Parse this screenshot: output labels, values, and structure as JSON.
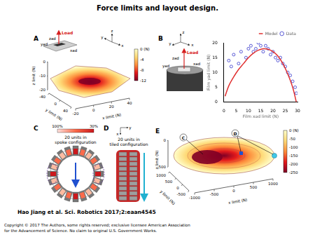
{
  "title": "Force limits and layout design.",
  "panels": [
    {
      "label": "A",
      "annotations": [
        "Load",
        "zad",
        "yad",
        "xad"
      ],
      "triad": [
        "y",
        "x",
        "z"
      ],
      "x_axis": {
        "title": "x limit (N)",
        "ticks": [
          -20,
          0,
          20,
          40
        ]
      },
      "y_axis": {
        "title": "y limit (N)",
        "ticks": [
          -40,
          0,
          40
        ]
      },
      "z_axis": {
        "title": "z limit (N)",
        "ticks": [
          0,
          -10,
          -20
        ]
      },
      "colorbar": {
        "ticks": [
          {
            "value": 0,
            "label": "0 (N)"
          },
          -4,
          -8,
          -12
        ]
      }
    },
    {
      "label": "B",
      "annotations": [
        "Load",
        "zad",
        "yad",
        "xad"
      ],
      "triad": [
        "z",
        "y",
        "x"
      ]
    },
    {
      "label": "C",
      "title_lines": [
        "20 units in",
        "spoke configuration"
      ],
      "colorbar": {
        "ticks": [
          {
            "value": 100,
            "label": "100%"
          },
          {
            "value": 30,
            "label": "30%"
          }
        ]
      }
    },
    {
      "label": "D",
      "title_lines": [
        "20 units in",
        "tiled configuration"
      ],
      "triad": [
        "x",
        "y"
      ]
    },
    {
      "label": "E",
      "markers": [
        "C",
        "D"
      ],
      "x_axis": {
        "title": "x limit (N)",
        "ticks": [
          -1000,
          -500,
          0,
          500,
          1000
        ]
      },
      "y_axis": {
        "title": "y limit (N)",
        "ticks": [
          1000,
          500,
          0,
          -500
        ]
      },
      "z_axis": {
        "title": "z limit (N)",
        "ticks": [
          0,
          -500
        ]
      },
      "colorbar": {
        "ticks": [
          {
            "value": 0,
            "label": "0 (N)"
          },
          -50,
          -100,
          -150,
          -200,
          -250
        ]
      }
    }
  ],
  "chart_data": {
    "type": "scatter",
    "x_label": "Film xad limit (N)",
    "y_label": "Film yad limit (N)",
    "xlim": [
      0,
      30
    ],
    "xticks": [
      0,
      5,
      10,
      15,
      20,
      25,
      30
    ],
    "ylim": [
      0,
      20
    ],
    "yticks": [
      0,
      5,
      10,
      15,
      20
    ],
    "grid": false,
    "legend": "top",
    "series": [
      {
        "name": "Model",
        "type": "line",
        "color": "#e03030",
        "line_style": "solid",
        "x": [
          0.5,
          2,
          4,
          6,
          8,
          10,
          12,
          14,
          16,
          18,
          20,
          22,
          24,
          26,
          28,
          29.5
        ],
        "values": [
          2,
          5.5,
          8.5,
          11,
          13,
          15,
          16.5,
          17.5,
          18,
          17.8,
          17,
          15.5,
          13,
          9.5,
          5,
          0
        ]
      },
      {
        "name": "Data",
        "type": "scatter",
        "color": "#4a4ad0",
        "marker": "circle",
        "x": [
          2,
          3,
          4,
          6,
          7,
          9,
          10,
          11,
          12,
          13,
          14,
          15,
          16,
          17,
          18,
          19,
          20,
          21,
          22,
          23,
          24,
          25,
          26,
          27,
          28,
          29,
          29.5
        ],
        "values": [
          14,
          12,
          16,
          13,
          17,
          15,
          18,
          19,
          17,
          18,
          20,
          19,
          17,
          19,
          18,
          16,
          17,
          15,
          14,
          15,
          13,
          12,
          10,
          9,
          7,
          5,
          3
        ]
      }
    ]
  },
  "citation": "Hao Jiang et al. Sci. Robotics 2017;2:eaan4545",
  "copyright": [
    "Copyright © 2017 The Authors, some rights reserved; exclusive licensee American Association",
    "for the Advancement of Science. No claim to original U.S. Government Works."
  ]
}
